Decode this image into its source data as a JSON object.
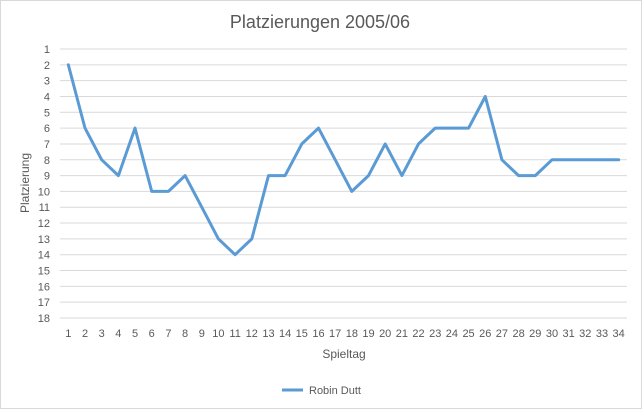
{
  "chart_data": {
    "type": "line",
    "title": "Platzierungen 2005/06",
    "xlabel": "Spieltag",
    "ylabel": "Platzierung",
    "x": [
      1,
      2,
      3,
      4,
      5,
      6,
      7,
      8,
      9,
      10,
      11,
      12,
      13,
      14,
      15,
      16,
      17,
      18,
      19,
      20,
      21,
      22,
      23,
      24,
      25,
      26,
      27,
      28,
      29,
      30,
      31,
      32,
      33,
      34
    ],
    "series": [
      {
        "name": "Robin Dutt",
        "color": "#5b9bd5",
        "values": [
          2,
          6,
          8,
          9,
          6,
          10,
          10,
          9,
          11,
          13,
          14,
          13,
          9,
          9,
          7,
          6,
          8,
          10,
          9,
          7,
          9,
          7,
          6,
          6,
          6,
          4,
          8,
          9,
          9,
          8,
          8,
          8,
          8,
          8
        ]
      }
    ],
    "ylim": [
      1,
      18
    ],
    "y_reversed": true,
    "y_ticks": [
      1,
      2,
      3,
      4,
      5,
      6,
      7,
      8,
      9,
      10,
      11,
      12,
      13,
      14,
      15,
      16,
      17,
      18
    ],
    "grid": true,
    "legend_position": "bottom"
  }
}
